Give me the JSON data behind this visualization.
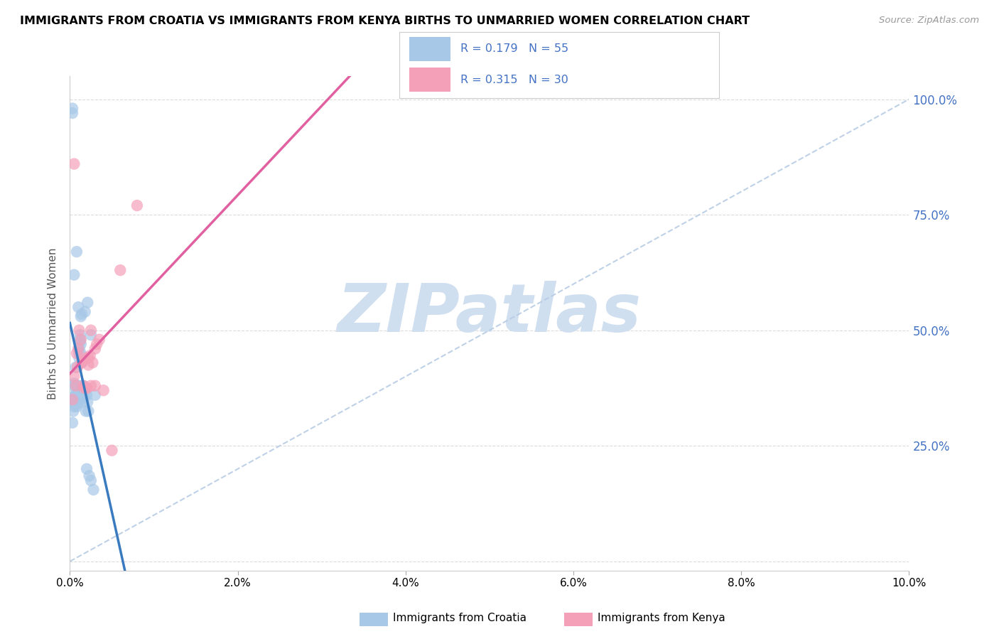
{
  "title": "IMMIGRANTS FROM CROATIA VS IMMIGRANTS FROM KENYA BIRTHS TO UNMARRIED WOMEN CORRELATION CHART",
  "source": "Source: ZipAtlas.com",
  "ylabel": "Births to Unmarried Women",
  "legend_label1": "Immigrants from Croatia",
  "legend_label2": "Immigrants from Kenya",
  "croatia_R": 0.179,
  "croatia_N": 55,
  "kenya_R": 0.315,
  "kenya_N": 30,
  "color_croatia": "#a8c8e8",
  "color_kenya": "#f4a0b8",
  "color_croatia_line": "#3a7abf",
  "color_kenya_line": "#e060a0",
  "color_diag": "#b8cce4",
  "color_grid": "#d8d8d8",
  "watermark_color": "#d0dff0",
  "croatia_x": [
    0.0003,
    0.0003,
    0.0004,
    0.0004,
    0.0005,
    0.0005,
    0.0006,
    0.0006,
    0.0007,
    0.0007,
    0.0007,
    0.0008,
    0.0008,
    0.0009,
    0.0009,
    0.0009,
    0.001,
    0.001,
    0.001,
    0.001,
    0.0011,
    0.0011,
    0.0011,
    0.0012,
    0.0012,
    0.0013,
    0.0013,
    0.0014,
    0.0014,
    0.0015,
    0.0015,
    0.0016,
    0.0016,
    0.0017,
    0.0018,
    0.0019,
    0.002,
    0.002,
    0.0021,
    0.0022,
    0.0023,
    0.0025,
    0.0028,
    0.0012,
    0.0013,
    0.0014,
    0.0018,
    0.0021,
    0.0025,
    0.003,
    0.0003,
    0.0003,
    0.0005,
    0.0008,
    0.001
  ],
  "croatia_y": [
    0.3,
    0.355,
    0.325,
    0.38,
    0.335,
    0.385,
    0.34,
    0.35,
    0.36,
    0.42,
    0.38,
    0.335,
    0.365,
    0.34,
    0.36,
    0.365,
    0.38,
    0.35,
    0.375,
    0.37,
    0.46,
    0.44,
    0.45,
    0.48,
    0.475,
    0.47,
    0.45,
    0.43,
    0.38,
    0.355,
    0.345,
    0.36,
    0.38,
    0.355,
    0.37,
    0.325,
    0.2,
    0.36,
    0.345,
    0.325,
    0.185,
    0.175,
    0.155,
    0.49,
    0.53,
    0.535,
    0.54,
    0.56,
    0.49,
    0.36,
    0.97,
    0.98,
    0.62,
    0.67,
    0.55
  ],
  "kenya_x": [
    0.0003,
    0.0005,
    0.0007,
    0.0008,
    0.0009,
    0.001,
    0.0011,
    0.0013,
    0.0014,
    0.0015,
    0.0016,
    0.0017,
    0.0018,
    0.002,
    0.0022,
    0.0022,
    0.0024,
    0.0025,
    0.0027,
    0.003,
    0.0032,
    0.0035,
    0.002,
    0.0025,
    0.003,
    0.004,
    0.005,
    0.006,
    0.008,
    0.0005
  ],
  "kenya_y": [
    0.35,
    0.4,
    0.38,
    0.45,
    0.42,
    0.46,
    0.5,
    0.48,
    0.43,
    0.435,
    0.38,
    0.375,
    0.44,
    0.375,
    0.425,
    0.44,
    0.445,
    0.38,
    0.43,
    0.46,
    0.47,
    0.48,
    0.375,
    0.5,
    0.38,
    0.37,
    0.24,
    0.63,
    0.77,
    0.86
  ],
  "xlim": [
    0.0,
    0.1
  ],
  "ylim": [
    -0.02,
    1.05
  ],
  "yticks": [
    0.0,
    0.25,
    0.5,
    0.75,
    1.0
  ],
  "ytick_labels": [
    "",
    "25.0%",
    "50.0%",
    "75.0%",
    "100.0%"
  ],
  "xticks": [
    0.0,
    0.02,
    0.04,
    0.06,
    0.08,
    0.1
  ],
  "xtick_labels": [
    "0.0%",
    "2.0%",
    "4.0%",
    "6.0%",
    "8.0%",
    "10.0%"
  ]
}
